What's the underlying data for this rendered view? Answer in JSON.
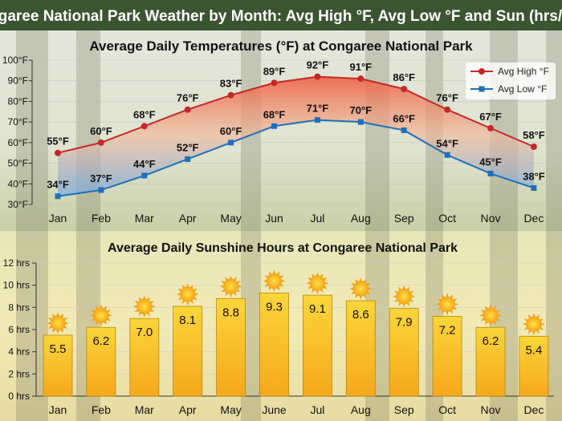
{
  "header": {
    "title": "Congaree National Park Weather by Month: Avg High °F, Avg Low °F and Sun (hrs/day)"
  },
  "colors": {
    "header_bg": "#3b5532",
    "high": "#c62828",
    "low": "#1e6fb8",
    "bar": "#f7c021",
    "sun": "#f9b51c"
  },
  "chart_data": [
    {
      "type": "line",
      "title": "Average Daily Temperatures (°F) at Congaree National Park",
      "categories": [
        "Jan",
        "Feb",
        "Mar",
        "Apr",
        "May",
        "Jun",
        "Jul",
        "Aug",
        "Sep",
        "Oct",
        "Nov",
        "Dec"
      ],
      "ylim": [
        30,
        100
      ],
      "yticks": [
        "30°F",
        "40°F",
        "50°F",
        "60°F",
        "70°F",
        "80°F",
        "90°F",
        "100°F"
      ],
      "legend": "top-right",
      "grid": true,
      "series": [
        {
          "name": "Avg High °F",
          "values": [
            55,
            60,
            68,
            76,
            83,
            89,
            92,
            91,
            86,
            76,
            67,
            58
          ],
          "labels": [
            "55°F",
            "60°F",
            "68°F",
            "76°F",
            "83°F",
            "89°F",
            "92°F",
            "91°F",
            "86°F",
            "76°F",
            "67°F",
            "58°F"
          ]
        },
        {
          "name": "Avg Low °F",
          "values": [
            34,
            37,
            44,
            52,
            60,
            68,
            71,
            70,
            66,
            54,
            45,
            38
          ],
          "labels": [
            "34°F",
            "37°F",
            "44°F",
            "52°F",
            "60°F",
            "68°F",
            "71°F",
            "70°F",
            "66°F",
            "54°F",
            "45°F",
            "38°F"
          ]
        }
      ]
    },
    {
      "type": "bar",
      "title": "Average Daily Sunshine Hours at Congaree National Park",
      "categories": [
        "Jan",
        "Feb",
        "Mar",
        "Apr",
        "May",
        "June",
        "Jul",
        "Aug",
        "Sep",
        "Oct",
        "Nov",
        "Dec"
      ],
      "values": [
        5.5,
        6.2,
        7.0,
        8.1,
        8.8,
        9.3,
        9.1,
        8.6,
        7.9,
        7.2,
        6.2,
        5.4
      ],
      "labels": [
        "5.5",
        "6.2",
        "7.0",
        "8.1",
        "8.8",
        "9.3",
        "9.1",
        "8.6",
        "7.9",
        "7.2",
        "6.2",
        "5.4"
      ],
      "ylim": [
        0,
        12
      ],
      "yticks": [
        "0 hrs",
        "2 hrs",
        "4 hrs",
        "6 hrs",
        "8 hrs",
        "10 hrs",
        "12 hrs"
      ],
      "grid": true,
      "icon": "sun-icon"
    }
  ]
}
